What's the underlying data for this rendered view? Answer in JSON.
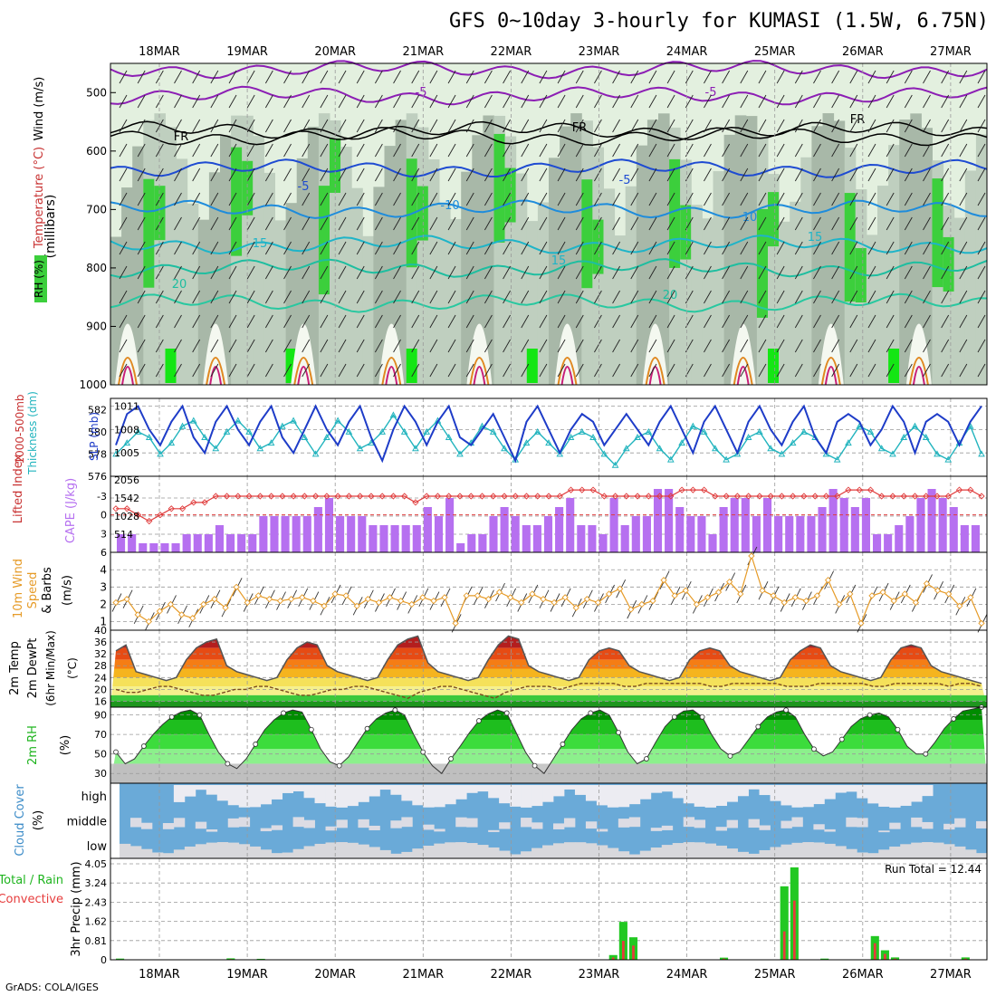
{
  "title": "GFS 0~10day 3-hourly for KUMASI (1.5W, 6.75N)",
  "credit": "GrADS: COLA/IGES",
  "colors": {
    "rh_light": "#e3f0df",
    "rh_mid": "#bfcfbf",
    "rh_dark": "#a8b8a8",
    "rh_green": "#3ccf3c",
    "rh_bright": "#14e614",
    "slp": "#1e3cc8",
    "thickness": "#22b4be",
    "cape": "#b670f0",
    "lifted": "#e03c3c",
    "wind10": "#e69b28",
    "temp_dark": "#b41e1e",
    "temp_red": "#e64b14",
    "temp_orange": "#f57d14",
    "temp_amber": "#f5b41e",
    "temp_yellow": "#f5e15a",
    "temp_pale": "#f5f08c",
    "dew_green": "#3cc83c",
    "dew_dark": "#1e961e",
    "rh2_dark": "#008c00",
    "rh2_mid": "#1ebe1e",
    "rh2_green": "#3cdc3c",
    "rh2_light": "#8cf08c",
    "cloud_blue": "#6aaad8",
    "cloud_white": "#ececf2",
    "precip_green": "#22c822",
    "precip_red": "#e63c3c"
  },
  "chart_data": [
    {
      "type": "heatmap",
      "name": "vertical-profile",
      "ylabel": "(millibars)",
      "legend_labels": [
        "RH (%)",
        "Temperature (°C)",
        "Wind (m/s)"
      ],
      "x_ticks": [
        "18MAR",
        "19MAR",
        "20MAR",
        "21MAR",
        "22MAR",
        "23MAR",
        "24MAR",
        "25MAR",
        "26MAR",
        "27MAR"
      ],
      "y_ticks": [
        "500",
        "600",
        "700",
        "800",
        "900",
        "1000"
      ],
      "ylim": [
        1000,
        450
      ],
      "contour_labels": [
        "-5",
        "-5",
        "FR",
        "FR",
        "FR",
        "-5",
        "-5",
        "-10",
        "10",
        "15",
        "15",
        "15",
        "20",
        "20"
      ]
    },
    {
      "type": "line",
      "name": "slp-thickness",
      "ylabel_left": "Thickness (dm)",
      "ylabel_left_title": "1000-500mb",
      "ylabel_right": "SLP (mb)",
      "left_ticks": [
        "582",
        "580",
        "578",
        "576"
      ],
      "right_ticks": [
        "1011",
        "1008",
        "1005"
      ],
      "slp_range": [
        1002,
        1012
      ],
      "thickness_range": [
        576,
        583
      ],
      "slp": [
        1006,
        1010,
        1011,
        1008,
        1006,
        1009,
        1011,
        1007,
        1005,
        1009,
        1011,
        1008,
        1006,
        1009,
        1011,
        1007,
        1005,
        1008,
        1011,
        1008,
        1006,
        1009,
        1011,
        1007,
        1004,
        1008,
        1011,
        1009,
        1006,
        1009,
        1011,
        1007,
        1006,
        1008,
        1010,
        1007,
        1004,
        1009,
        1011,
        1008,
        1005,
        1008,
        1010,
        1009,
        1006,
        1008,
        1010,
        1008,
        1006,
        1009,
        1011,
        1008,
        1005,
        1009,
        1011,
        1008,
        1005,
        1009,
        1011,
        1008,
        1006,
        1009,
        1011,
        1007,
        1005,
        1009,
        1010,
        1009,
        1006,
        1008,
        1011,
        1009,
        1005,
        1009,
        1010,
        1009,
        1006,
        1009,
        1011
      ],
      "thickness": [
        578,
        579,
        580,
        579.5,
        578,
        579,
        580.5,
        581,
        579.5,
        578.5,
        580,
        581,
        580,
        578.5,
        579,
        580.5,
        581,
        579.5,
        578,
        579.5,
        581,
        580,
        578.5,
        579,
        580,
        581.5,
        580,
        578.5,
        580,
        581,
        579.5,
        578,
        579,
        580.5,
        580,
        578.5,
        577.5,
        579,
        580,
        579,
        578,
        579.5,
        580,
        579.5,
        578,
        577,
        578.5,
        579.5,
        580,
        578.5,
        577.5,
        579,
        580.5,
        580,
        578.5,
        577.5,
        578,
        579.5,
        580,
        578.5,
        578,
        579,
        580,
        579.5,
        578,
        577.5,
        579,
        580.5,
        580,
        578.5,
        578,
        579.5,
        580.5,
        579.5,
        578,
        577.5,
        579,
        580.5,
        578
      ]
    },
    {
      "type": "bar",
      "name": "cape-lifted",
      "ylabel_left": "Lifted Index",
      "ylabel_right": "CAPE (J/kg)",
      "left_ticks": [
        "-3",
        "0",
        "3",
        "6"
      ],
      "right_ticks": [
        "2056",
        "1542",
        "1028",
        "514"
      ],
      "cape_max": 2056,
      "cape": [
        514,
        514,
        257,
        257,
        257,
        257,
        514,
        514,
        514,
        771,
        514,
        514,
        514,
        1028,
        1028,
        1028,
        1028,
        1028,
        1285,
        1542,
        1028,
        1028,
        1028,
        771,
        771,
        771,
        771,
        771,
        1285,
        1028,
        1542,
        257,
        514,
        514,
        1028,
        1285,
        1028,
        771,
        771,
        1028,
        1285,
        1542,
        771,
        771,
        514,
        1542,
        771,
        1028,
        1028,
        1799,
        1799,
        1285,
        1028,
        1028,
        514,
        1285,
        1542,
        1542,
        1028,
        1542,
        1028,
        1028,
        1028,
        1028,
        1285,
        1799,
        1542,
        1285,
        1542,
        514,
        514,
        771,
        1028,
        1542,
        1799,
        1542,
        1285,
        771,
        771
      ],
      "lifted_index": [
        -1,
        -1,
        0,
        1,
        0,
        -1,
        -1,
        -2,
        -2,
        -3,
        -3,
        -3,
        -3,
        -3,
        -3,
        -3,
        -3,
        -3,
        -3,
        -3,
        -3,
        -3,
        -3,
        -3,
        -3,
        -3,
        -3,
        -2,
        -3,
        -3,
        -3,
        -3,
        -3,
        -3,
        -3,
        -3,
        -3,
        -3,
        -3,
        -3,
        -3,
        -4,
        -4,
        -4,
        -3,
        -3,
        -3,
        -3,
        -3,
        -3,
        -3,
        -4,
        -4,
        -4,
        -3,
        -3,
        -3,
        -3,
        -3,
        -3,
        -3,
        -3,
        -3,
        -3,
        -3,
        -3,
        -4,
        -4,
        -4,
        -3,
        -3,
        -3,
        -3,
        -3,
        -3,
        -3,
        -4,
        -4,
        -3
      ]
    },
    {
      "type": "line",
      "name": "wind10",
      "ylabel": "10m Wind Speed & Barbs (m/s)",
      "y_ticks": [
        "4",
        "3",
        "2",
        "1"
      ],
      "ylim": [
        0.5,
        4.8
      ],
      "values": [
        2.1,
        2.3,
        1.4,
        1.0,
        1.6,
        2.0,
        1.4,
        1.2,
        2.0,
        2.3,
        1.8,
        3.0,
        2.1,
        2.5,
        2.3,
        2.2,
        2.3,
        2.4,
        2.2,
        1.9,
        2.6,
        2.5,
        1.9,
        2.3,
        2.1,
        2.4,
        2.2,
        2.0,
        2.4,
        2.2,
        2.4,
        0.9,
        2.5,
        2.5,
        2.3,
        2.7,
        2.4,
        2.1,
        2.6,
        2.3,
        2.1,
        2.4,
        1.8,
        2.3,
        2.1,
        2.6,
        2.9,
        1.7,
        2.0,
        2.2,
        3.4,
        2.5,
        2.8,
        2.0,
        2.4,
        2.7,
        3.3,
        2.6,
        4.8,
        2.8,
        2.5,
        2.1,
        2.4,
        2.2,
        2.5,
        3.4,
        2.0,
        2.6,
        0.9,
        2.5,
        2.7,
        2.2,
        2.6,
        2.1,
        3.2,
        2.8,
        2.6,
        1.9,
        2.4,
        0.9
      ]
    },
    {
      "type": "area",
      "name": "temp-dew",
      "ylabel": "2m Temp 2m DewPt (6hr Min/Max) (°C)",
      "y_ticks": [
        "40",
        "36",
        "32",
        "28",
        "24",
        "20",
        "16"
      ],
      "ylim": [
        14,
        40
      ],
      "temp": [
        33,
        35,
        26,
        25,
        24,
        23,
        24,
        30,
        34,
        36,
        37,
        28,
        26,
        25,
        24,
        23,
        24,
        30,
        34,
        36,
        35,
        28,
        26,
        25,
        24,
        23,
        24,
        30,
        35,
        37,
        38,
        29,
        26,
        25,
        24,
        23,
        24,
        30,
        35,
        38,
        37,
        28,
        26,
        25,
        24,
        23,
        24,
        30,
        33,
        34,
        33,
        28,
        26,
        25,
        24,
        23,
        24,
        30,
        33,
        34,
        33,
        28,
        26,
        25,
        24,
        23,
        24,
        30,
        33,
        35,
        34,
        28,
        26,
        25,
        24,
        23,
        24,
        30,
        34,
        35,
        34,
        28,
        26,
        25,
        24,
        23,
        22
      ],
      "dew": [
        20,
        19,
        19,
        20,
        21,
        21,
        20,
        19,
        18,
        18,
        19,
        20,
        20,
        21,
        21,
        20,
        19,
        18,
        18,
        19,
        20,
        20,
        21,
        21,
        20,
        19,
        18,
        17,
        19,
        20,
        21,
        21,
        20,
        19,
        18,
        17,
        19,
        20,
        21,
        21,
        21,
        20,
        21,
        22,
        22,
        22,
        22,
        21,
        21,
        22,
        22,
        22,
        22,
        22,
        22,
        21,
        21,
        22,
        22,
        22,
        22,
        22,
        21,
        21,
        21,
        22,
        22,
        22,
        22,
        22,
        21,
        21,
        22,
        22,
        22,
        22,
        22,
        21,
        22,
        22,
        21
      ]
    },
    {
      "type": "area",
      "name": "rh2m",
      "ylabel": "2m RH (%)",
      "y_ticks": [
        "90",
        "70",
        "50",
        "30"
      ],
      "ylim": [
        20,
        98
      ],
      "values": [
        52,
        40,
        45,
        58,
        70,
        80,
        88,
        93,
        95,
        90,
        70,
        52,
        40,
        35,
        45,
        60,
        75,
        85,
        92,
        95,
        93,
        75,
        55,
        42,
        38,
        47,
        62,
        76,
        86,
        92,
        95,
        90,
        70,
        52,
        38,
        30,
        45,
        58,
        72,
        84,
        91,
        95,
        92,
        72,
        52,
        38,
        30,
        45,
        60,
        75,
        86,
        92,
        95,
        90,
        72,
        52,
        40,
        45,
        62,
        78,
        88,
        94,
        95,
        88,
        70,
        55,
        48,
        52,
        65,
        78,
        88,
        93,
        95,
        88,
        70,
        55,
        48,
        52,
        65,
        78,
        86,
        90,
        92,
        88,
        75,
        58,
        50,
        50,
        62,
        76,
        86,
        94,
        96,
        98
      ]
    },
    {
      "type": "table",
      "name": "cloud-cover",
      "ylabel": "Cloud Cover (%)",
      "levels": [
        "high",
        "middle",
        "low"
      ]
    },
    {
      "type": "bar",
      "name": "precip",
      "ylabel": "3hr Precip (mm)",
      "legend_labels": [
        "Total / Rain",
        "Convective"
      ],
      "y_ticks": [
        "4.05",
        "3.24",
        "2.43",
        "1.62",
        "0.81",
        "0"
      ],
      "ylim": [
        0,
        4.05
      ],
      "run_total": "Run Total =  12.44",
      "total": [
        0.05,
        0,
        0,
        0,
        0,
        0,
        0,
        0,
        0,
        0,
        0,
        0.06,
        0,
        0,
        0.04,
        0,
        0,
        0,
        0,
        0,
        0,
        0,
        0,
        0,
        0,
        0,
        0,
        0,
        0,
        0,
        0,
        0,
        0,
        0,
        0,
        0,
        0,
        0,
        0,
        0,
        0,
        0,
        0,
        0,
        0,
        0,
        0,
        0,
        0,
        0.2,
        1.6,
        0.95,
        0,
        0,
        0,
        0,
        0,
        0,
        0,
        0,
        0.09,
        0,
        0,
        0,
        0,
        0,
        3.1,
        3.9,
        0,
        0,
        0.05,
        0,
        0,
        0,
        0,
        1.0,
        0.4,
        0.1,
        0,
        0,
        0,
        0,
        0,
        0,
        0.1,
        0
      ],
      "convective": [
        0.02,
        0,
        0,
        0,
        0,
        0,
        0,
        0,
        0,
        0,
        0,
        0.03,
        0,
        0,
        0.02,
        0,
        0,
        0,
        0,
        0,
        0,
        0,
        0,
        0,
        0,
        0,
        0,
        0,
        0,
        0,
        0,
        0,
        0,
        0,
        0,
        0,
        0,
        0,
        0,
        0,
        0,
        0,
        0,
        0,
        0,
        0,
        0,
        0,
        0,
        0.1,
        0.8,
        0.6,
        0,
        0,
        0,
        0,
        0,
        0,
        0,
        0,
        0.05,
        0,
        0,
        0,
        0,
        0,
        1.2,
        2.5,
        0,
        0,
        0.02,
        0,
        0,
        0,
        0,
        0.7,
        0.25,
        0.05,
        0,
        0,
        0,
        0,
        0,
        0,
        0.05,
        0
      ]
    }
  ]
}
